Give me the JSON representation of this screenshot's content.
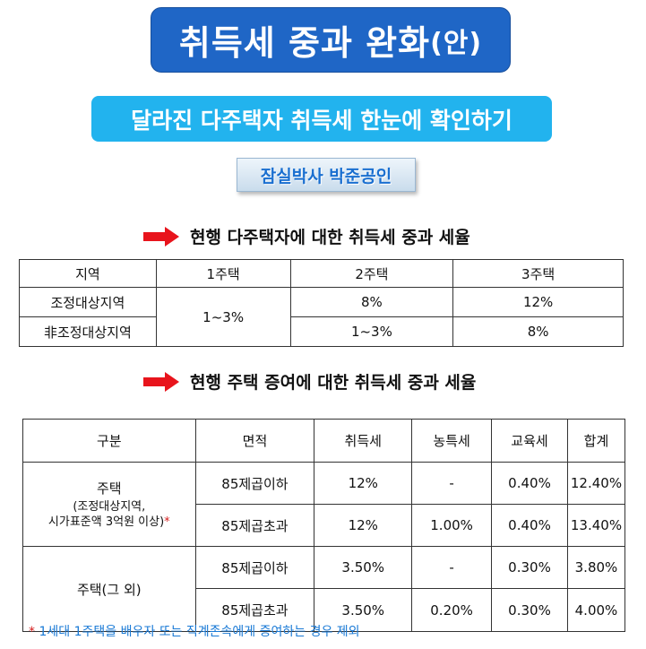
{
  "title": {
    "main": "취득세 중과 완화",
    "suffix": "(안)"
  },
  "subtitle": "달라진 다주택자 취득세 한눈에 확인하기",
  "author": "잠실박사 박준공인",
  "section1": {
    "heading": "현행 다주택자에 대한 취득세 중과 세율",
    "columns": [
      "지역",
      "1주택",
      "2주택",
      "3주택"
    ],
    "rows": [
      {
        "region": "조정대상지역",
        "two": "8%",
        "three": "12%"
      },
      {
        "region": "非조정대상지역",
        "two": "1~3%",
        "three": "8%"
      }
    ],
    "one_house_merged": "1~3%"
  },
  "section2": {
    "heading": "현행 주택 증여에 대한 취득세 중과 세율",
    "columns": [
      "구분",
      "면적",
      "취득세",
      "농특세",
      "교육세",
      "합계"
    ],
    "group1": {
      "label": "주택",
      "sub1": "(조정대상지역,",
      "sub2": "시가표준액 3억원 이상)",
      "star": "*",
      "rows": [
        {
          "area": "85제곱이하",
          "acq": "12%",
          "agri": "-",
          "edu": "0.40%",
          "total": "12.40%"
        },
        {
          "area": "85제곱초과",
          "acq": "12%",
          "agri": "1.00%",
          "edu": "0.40%",
          "total": "13.40%"
        }
      ]
    },
    "group2": {
      "label": "주택(그 외)",
      "rows": [
        {
          "area": "85제곱이하",
          "acq": "3.50%",
          "agri": "-",
          "edu": "0.30%",
          "total": "3.80%"
        },
        {
          "area": "85제곱초과",
          "acq": "3.50%",
          "agri": "0.20%",
          "edu": "0.30%",
          "total": "4.00%"
        }
      ]
    }
  },
  "footnote": {
    "star": "*",
    "text": "1세대 1주택을 배우자 또는 직계존속에게 증여하는 경우 제외"
  },
  "colors": {
    "title_bg": "#1f66c6",
    "subtitle_bg": "#22b3ee",
    "arrow": "#e8141c",
    "footnote": "#1a7ad6"
  }
}
